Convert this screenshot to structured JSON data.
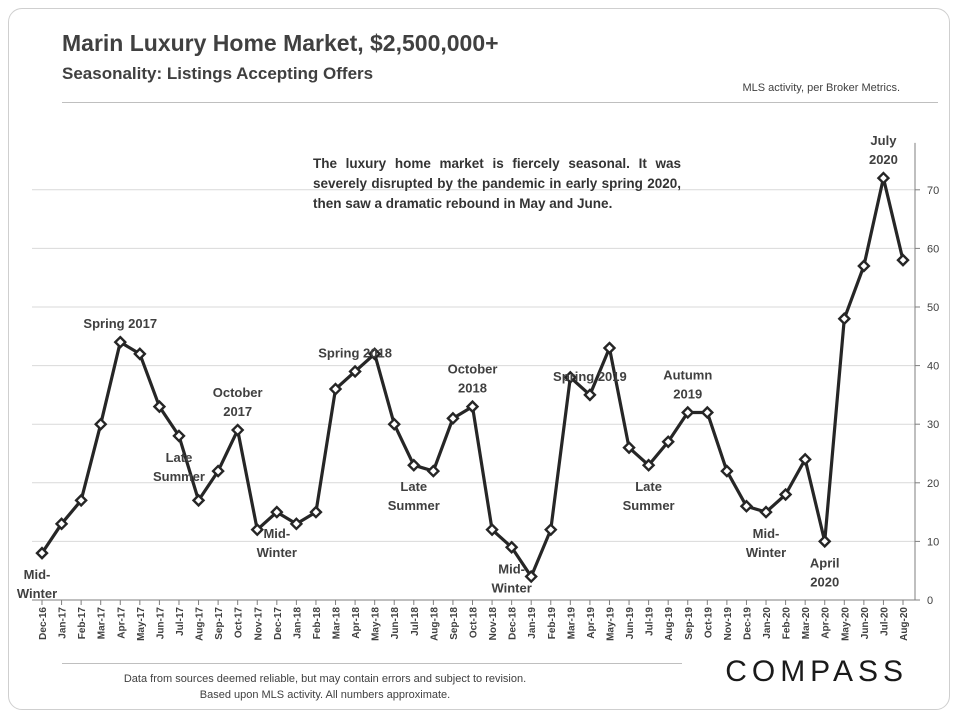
{
  "title": "Marin Luxury Home Market, $2,500,000+",
  "subtitle": "Seasonality:  Listings Accepting Offers",
  "source_note": "MLS activity, per Broker Metrics.",
  "annotation": "The luxury home market is fiercely seasonal. It was severely disrupted by the pandemic in early spring 2020, then saw a dramatic rebound in May and June.",
  "footnote": {
    "line1": "Data from sources deemed reliable, but may contain errors and subject to revision.",
    "line2": "Based upon MLS activity.  All numbers approximate."
  },
  "logo": "COMPASS",
  "colors": {
    "line": "#262626",
    "text": "#404040",
    "grid": "#d9d9d9",
    "axis": "#7f7f7f"
  },
  "chart_data": {
    "type": "line",
    "title": "Marin Luxury Home Market, $2,500,000+",
    "xlabel": "",
    "ylabel": "",
    "ylim": [
      0,
      75
    ],
    "yticks": [
      0,
      10,
      20,
      30,
      40,
      50,
      60,
      70
    ],
    "y_axis_side": "right",
    "grid": true,
    "categories": [
      "Dec-16",
      "Jan-17",
      "Feb-17",
      "Mar-17",
      "Apr-17",
      "May-17",
      "Jun-17",
      "Jul-17",
      "Aug-17",
      "Sep-17",
      "Oct-17",
      "Nov-17",
      "Dec-17",
      "Jan-18",
      "Feb-18",
      "Mar-18",
      "Apr-18",
      "May-18",
      "Jun-18",
      "Jul-18",
      "Aug-18",
      "Sep-18",
      "Oct-18",
      "Nov-18",
      "Dec-18",
      "Jan-19",
      "Feb-19",
      "Mar-19",
      "Apr-19",
      "May-19",
      "Jun-19",
      "Jul-19",
      "Aug-19",
      "Sep-19",
      "Oct-19",
      "Nov-19",
      "Dec-19",
      "Jan-20",
      "Feb-20",
      "Mar-20",
      "Apr-20",
      "May-20",
      "Jun-20",
      "Jul-20",
      "Aug-20"
    ],
    "series": [
      {
        "name": "Listings Accepting Offers",
        "values": [
          8,
          13,
          17,
          30,
          44,
          42,
          33,
          28,
          17,
          22,
          29,
          12,
          15,
          13,
          15,
          36,
          39,
          42,
          30,
          23,
          22,
          31,
          33,
          12,
          9,
          4,
          12,
          38,
          35,
          43,
          26,
          23,
          27,
          32,
          32,
          22,
          16,
          15,
          18,
          24,
          10,
          48,
          57,
          72,
          58
        ]
      }
    ],
    "annotations": [
      {
        "text": [
          "Mid-",
          "Winter"
        ],
        "index": 0,
        "placement": "below"
      },
      {
        "text": [
          "Spring 2017"
        ],
        "index": 4,
        "placement": "above"
      },
      {
        "text": [
          "Late",
          "Summer"
        ],
        "index": 7,
        "placement": "below"
      },
      {
        "text": [
          "October",
          "2017"
        ],
        "index": 10,
        "placement": "above"
      },
      {
        "text": [
          "Mid-",
          "Winter"
        ],
        "index": 12,
        "placement": "below"
      },
      {
        "text": [
          "Spring 2018"
        ],
        "index": 16,
        "placement": "above"
      },
      {
        "text": [
          "Late",
          "Summer"
        ],
        "index": 19,
        "placement": "below"
      },
      {
        "text": [
          "October",
          "2018"
        ],
        "index": 22,
        "placement": "above"
      },
      {
        "text": [
          "Mid-",
          "Winter"
        ],
        "index": 24,
        "placement": "below"
      },
      {
        "text": [
          "Spring 2019"
        ],
        "index": 28,
        "placement": "above"
      },
      {
        "text": [
          "Late",
          "Summer"
        ],
        "index": 31,
        "placement": "below"
      },
      {
        "text": [
          "Autumn",
          "2019"
        ],
        "index": 33,
        "placement": "above"
      },
      {
        "text": [
          "Mid-",
          "Winter"
        ],
        "index": 37,
        "placement": "below"
      },
      {
        "text": [
          "April",
          "2020"
        ],
        "index": 40,
        "placement": "below"
      },
      {
        "text": [
          "July",
          "2020"
        ],
        "index": 43,
        "placement": "above"
      }
    ]
  }
}
